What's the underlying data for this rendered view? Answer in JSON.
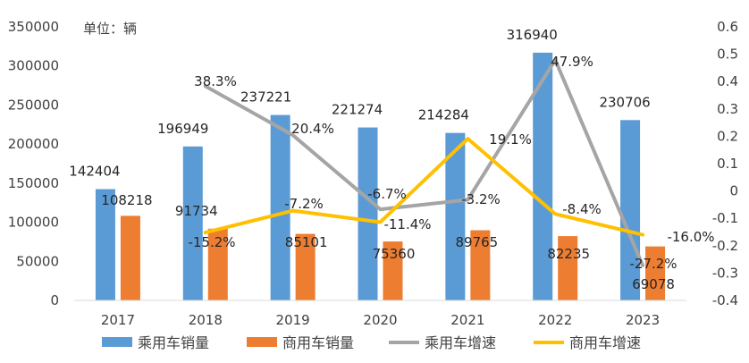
{
  "chart_data": {
    "type": "bar",
    "unit_label": "单位：辆",
    "categories": [
      "2017",
      "2018",
      "2019",
      "2020",
      "2021",
      "2022",
      "2023"
    ],
    "ylim": [
      0,
      350000
    ],
    "yticks": [
      "0",
      "50000",
      "100000",
      "150000",
      "200000",
      "250000",
      "300000",
      "350000"
    ],
    "y2lim": [
      -0.4,
      0.6
    ],
    "y2ticks": [
      "-0.4",
      "-0.3",
      "-0.2",
      "-0.1",
      "0",
      "0.1",
      "0.2",
      "0.3",
      "0.4",
      "0.5",
      "0.6"
    ],
    "legend_position": "bottom",
    "series": [
      {
        "name": "乘用车销量",
        "kind": "bar",
        "color": "#5B9BD5",
        "values": [
          142404,
          196949,
          237221,
          221274,
          214284,
          316940,
          230706
        ],
        "labels": [
          "142404",
          "196949",
          "237221",
          "221274",
          "214284",
          "316940",
          "230706"
        ]
      },
      {
        "name": "商用车销量",
        "kind": "bar",
        "color": "#ED7D31",
        "values": [
          108218,
          91734,
          85101,
          75360,
          89765,
          82235,
          69078
        ],
        "labels": [
          "108218",
          "91734",
          "85101",
          "75360",
          "89765",
          "82235",
          "69078"
        ]
      },
      {
        "name": "乘用车增速",
        "kind": "line",
        "axis": "right",
        "color": "#A5A5A5",
        "values": [
          null,
          0.383,
          0.204,
          -0.067,
          -0.032,
          0.479,
          -0.272
        ],
        "labels": [
          null,
          "38.3%",
          "20.4%",
          "-6.7%",
          "-3.2%",
          "47.9%",
          "-27.2%"
        ]
      },
      {
        "name": "商用车增速",
        "kind": "line",
        "axis": "right",
        "color": "#FFC000",
        "values": [
          null,
          -0.152,
          -0.072,
          -0.114,
          0.191,
          -0.084,
          -0.16
        ],
        "labels": [
          null,
          "-15.2%",
          "-7.2%",
          "-11.4%",
          "19.1%",
          "-8.4%",
          "-16.0%"
        ]
      }
    ]
  }
}
